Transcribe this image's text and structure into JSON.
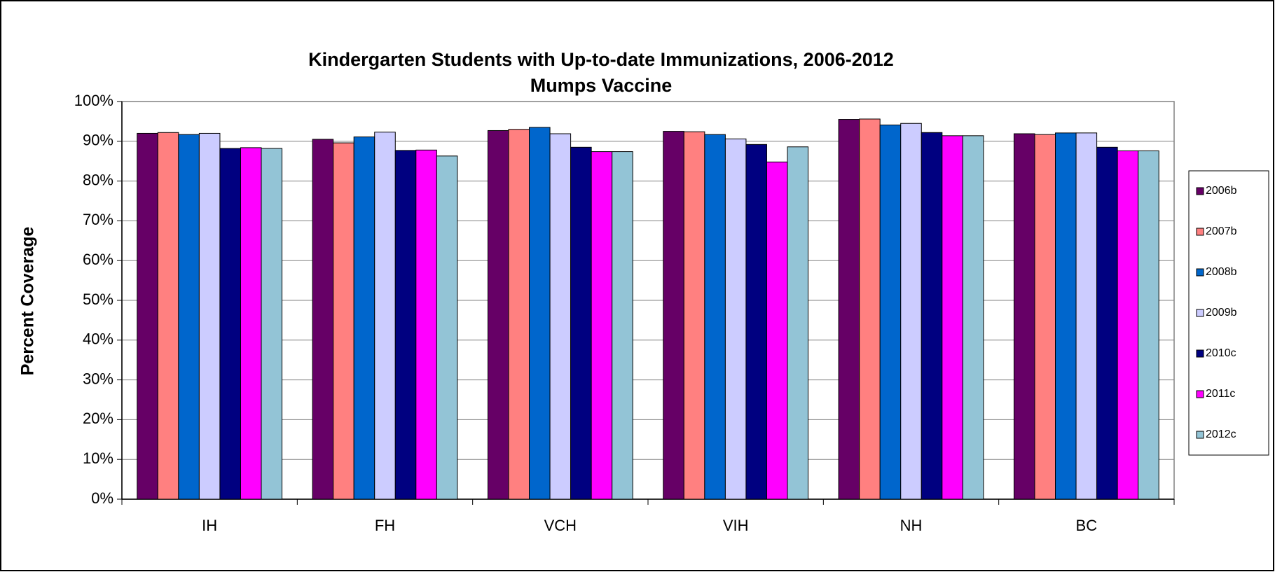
{
  "chart_data": {
    "type": "bar",
    "title": "Kindergarten Students with Up-to-date Immunizations, 2006-2012",
    "subtitle": "Mumps Vaccine",
    "y_label": "Percent Coverage",
    "categories": [
      "IH",
      "FH",
      "VCH",
      "VIH",
      "NH",
      "BC"
    ],
    "series": [
      {
        "name": "2006b",
        "color": "#660066",
        "values": [
          92,
          90.5,
          92.7,
          92.5,
          95.5,
          91.9
        ]
      },
      {
        "name": "2007b",
        "color": "#ff8080",
        "values": [
          92.2,
          89.6,
          93,
          92.4,
          95.6,
          91.7
        ]
      },
      {
        "name": "2008b",
        "color": "#0066cc",
        "values": [
          91.7,
          91.1,
          93.5,
          91.7,
          94.1,
          92.1
        ]
      },
      {
        "name": "2009b",
        "color": "#ccccff",
        "values": [
          92,
          92.3,
          91.9,
          90.6,
          94.5,
          92.1
        ]
      },
      {
        "name": "2010c",
        "color": "#000080",
        "values": [
          88.2,
          87.7,
          88.5,
          89.2,
          92.2,
          88.5
        ]
      },
      {
        "name": "2011c",
        "color": "#ff00ff",
        "values": [
          88.4,
          87.8,
          87.4,
          84.8,
          91.4,
          87.6
        ]
      },
      {
        "name": "2012c",
        "color": "#93c4d6",
        "values": [
          88.2,
          86.3,
          87.4,
          88.6,
          91.4,
          87.6
        ]
      }
    ],
    "ylim": [
      0,
      100
    ],
    "yticks": [
      {
        "value": 0,
        "label": "0%"
      },
      {
        "value": 10,
        "label": "10%"
      },
      {
        "value": 20,
        "label": "20%"
      },
      {
        "value": 30,
        "label": "30%"
      },
      {
        "value": 40,
        "label": "40%"
      },
      {
        "value": 50,
        "label": "50%"
      },
      {
        "value": 60,
        "label": "60%"
      },
      {
        "value": 70,
        "label": "70%"
      },
      {
        "value": 80,
        "label": "80%"
      },
      {
        "value": 90,
        "label": "90%"
      },
      {
        "value": 100,
        "label": "100%"
      }
    ],
    "grid": true,
    "legend": "right"
  }
}
